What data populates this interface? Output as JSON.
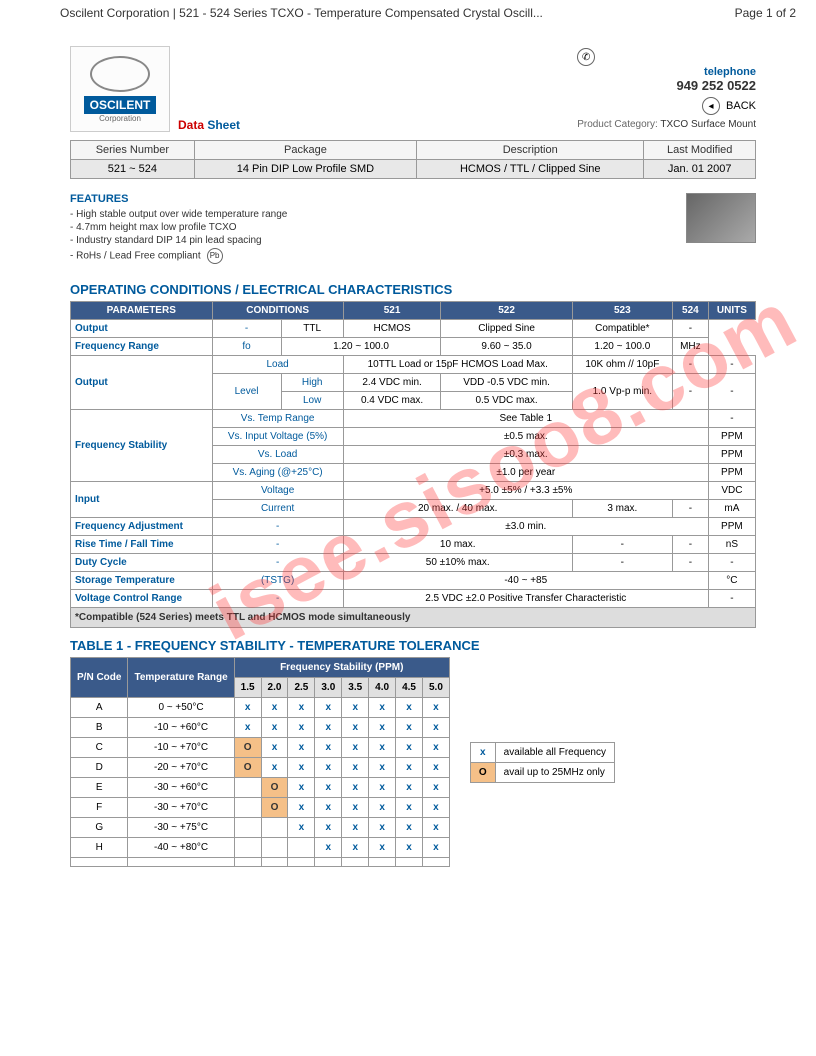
{
  "page_header_left": "Oscilent Corporation | 521 - 524 Series TCXO - Temperature Compensated Crystal Oscill...",
  "page_header_right": "Page 1 of 2",
  "logo": {
    "name": "OSCILENT",
    "sub": "Corporation"
  },
  "datasheet": {
    "part1": "Data",
    "part2": " Sheet"
  },
  "contact": {
    "tel_label": "telephone",
    "tel_num": "949 252 0522",
    "back": "BACK"
  },
  "prodcat_label": "Product Category:",
  "prodcat_value": "TXCO Surface Mount",
  "summary": {
    "headers": [
      "Series Number",
      "Package",
      "Description",
      "Last Modified"
    ],
    "row": [
      "521 ~ 524",
      "14 Pin DIP Low Profile SMD",
      "HCMOS / TTL / Clipped Sine",
      "Jan. 01 2007"
    ]
  },
  "features_title": "FEATURES",
  "features": [
    "- High stable output over wide temperature range",
    "- 4.7mm height max low profile TCXO",
    "- Industry standard DIP 14 pin lead spacing",
    "- RoHs / Lead Free compliant"
  ],
  "pb_icon_text": "Pb",
  "section1_title": "OPERATING CONDITIONS / ELECTRICAL CHARACTERISTICS",
  "spec_headers": [
    "PARAMETERS",
    "CONDITIONS",
    "521",
    "522",
    "523",
    "524",
    "UNITS"
  ],
  "spec": {
    "output": {
      "param": "Output",
      "cond": "-",
      "c521": "TTL",
      "c522": "HCMOS",
      "c523": "Clipped Sine",
      "c524": "Compatible*",
      "unit": "-"
    },
    "freq_range": {
      "param": "Frequency Range",
      "cond": "fo",
      "c521522": "1.20 ~ 100.0",
      "c523": "9.60 ~ 35.0",
      "c524": "1.20 ~ 100.0",
      "unit": "MHz"
    },
    "out_load": {
      "cond": "Load",
      "c521522": "10TTL Load or 15pF HCMOS Load Max.",
      "c523": "10K ohm // 10pF",
      "c524": "-",
      "unit": "-"
    },
    "out_high": {
      "sub": "High",
      "c521": "2.4 VDC min.",
      "c522": "VDD -0.5 VDC min."
    },
    "out_low": {
      "sub": "Low",
      "c521": "0.4 VDC max.",
      "c522": "0.5 VDC max."
    },
    "out_level": {
      "cond": "Level",
      "c523": "1.0 Vp-p min.",
      "c524": "-",
      "unit": "-"
    },
    "fs_temp": {
      "cond": "Vs. Temp Range",
      "val": "See Table 1",
      "unit": "-"
    },
    "fs_volt": {
      "cond": "Vs. Input Voltage (5%)",
      "val": "±0.5 max.",
      "unit": "PPM"
    },
    "fs_load": {
      "cond": "Vs. Load",
      "val": "±0.3 max.",
      "unit": "PPM"
    },
    "fs_aging": {
      "cond": "Vs. Aging (@+25°C)",
      "val": "±1.0 per year",
      "unit": "PPM"
    },
    "fs_param": "Frequency Stability",
    "in_volt": {
      "cond": "Voltage",
      "val": "+5.0 ±5% / +3.3 ±5%",
      "unit": "VDC"
    },
    "in_curr": {
      "cond": "Current",
      "c521522": "20 max. / 40 max.",
      "c523": "3 max.",
      "c524": "-",
      "unit": "mA"
    },
    "in_param": "Input",
    "freq_adj": {
      "param": "Frequency Adjustment",
      "cond": "-",
      "val": "±3.0 min.",
      "unit": "PPM"
    },
    "rise_fall": {
      "param": "Rise Time / Fall Time",
      "cond": "-",
      "c521522": "10 max.",
      "c523": "-",
      "c524": "-",
      "unit": "nS"
    },
    "duty": {
      "param": "Duty Cycle",
      "cond": "-",
      "c521522": "50 ±10% max.",
      "c523": "-",
      "c524": "-",
      "unit": "-"
    },
    "storage": {
      "param": "Storage Temperature",
      "cond": "(TSTG)",
      "val": "-40 ~ +85",
      "unit": "°C"
    },
    "vcr": {
      "param": "Voltage Control Range",
      "cond": "-",
      "val": "2.5 VDC ±2.0 Positive Transfer Characteristic",
      "unit": "-"
    },
    "footnote": "*Compatible (524 Series) meets TTL and HCMOS mode simultaneously"
  },
  "section2_title": "TABLE 1 -  FREQUENCY STABILITY - TEMPERATURE TOLERANCE",
  "freq": {
    "h_pn": "P/N Code",
    "h_temp": "Temperature Range",
    "h_fs": "Frequency Stability (PPM)",
    "cols": [
      "1.5",
      "2.0",
      "2.5",
      "3.0",
      "3.5",
      "4.0",
      "4.5",
      "5.0"
    ],
    "rows": [
      {
        "code": "A",
        "temp": "0 ~ +50°C",
        "cells": [
          "x",
          "x",
          "x",
          "x",
          "x",
          "x",
          "x",
          "x"
        ]
      },
      {
        "code": "B",
        "temp": "-10 ~ +60°C",
        "cells": [
          "x",
          "x",
          "x",
          "x",
          "x",
          "x",
          "x",
          "x"
        ]
      },
      {
        "code": "C",
        "temp": "-10 ~ +70°C",
        "cells": [
          "O",
          "x",
          "x",
          "x",
          "x",
          "x",
          "x",
          "x"
        ]
      },
      {
        "code": "D",
        "temp": "-20 ~ +70°C",
        "cells": [
          "O",
          "x",
          "x",
          "x",
          "x",
          "x",
          "x",
          "x"
        ]
      },
      {
        "code": "E",
        "temp": "-30 ~ +60°C",
        "cells": [
          "",
          "O",
          "x",
          "x",
          "x",
          "x",
          "x",
          "x"
        ]
      },
      {
        "code": "F",
        "temp": "-30 ~ +70°C",
        "cells": [
          "",
          "O",
          "x",
          "x",
          "x",
          "x",
          "x",
          "x"
        ]
      },
      {
        "code": "G",
        "temp": "-30 ~ +75°C",
        "cells": [
          "",
          "",
          "x",
          "x",
          "x",
          "x",
          "x",
          "x"
        ]
      },
      {
        "code": "H",
        "temp": "-40 ~ +80°C",
        "cells": [
          "",
          "",
          "",
          "x",
          "x",
          "x",
          "x",
          "x"
        ]
      },
      {
        "code": "",
        "temp": "",
        "cells": [
          "",
          "",
          "",
          "",
          "",
          "",
          "",
          ""
        ]
      }
    ]
  },
  "legend": {
    "x_label": "x",
    "x_text": "available all Frequency",
    "o_label": "O",
    "o_text": "avail up to 25MHz only"
  },
  "watermark": "isee.sisoo8.com"
}
